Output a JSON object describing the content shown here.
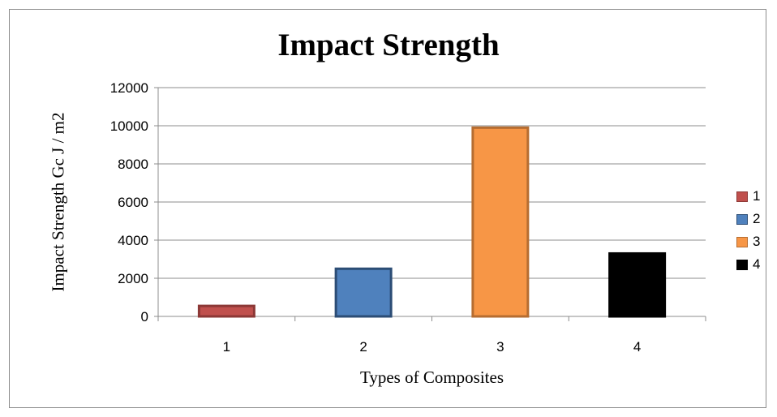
{
  "chart_data": {
    "type": "bar",
    "title": "Impact Strength",
    "xlabel": "Types of Composites",
    "ylabel": "Impact Strength  Gc J / m2",
    "categories": [
      "1",
      "2",
      "3",
      "4"
    ],
    "ylim": [
      0,
      12000
    ],
    "yticks": [
      0,
      2000,
      4000,
      6000,
      8000,
      10000,
      12000
    ],
    "grid": true,
    "legend_position": "right",
    "series": [
      {
        "name": "1",
        "category": "1",
        "value": 550,
        "fill": "#c0504d",
        "stroke": "#8c3836"
      },
      {
        "name": "2",
        "category": "2",
        "value": 2500,
        "fill": "#4f81bd",
        "stroke": "#2c4d75"
      },
      {
        "name": "3",
        "category": "3",
        "value": 9900,
        "fill": "#f79646",
        "stroke": "#b66d31"
      },
      {
        "name": "4",
        "category": "4",
        "value": 3300,
        "fill": "#000000",
        "stroke": "#000000"
      }
    ]
  }
}
